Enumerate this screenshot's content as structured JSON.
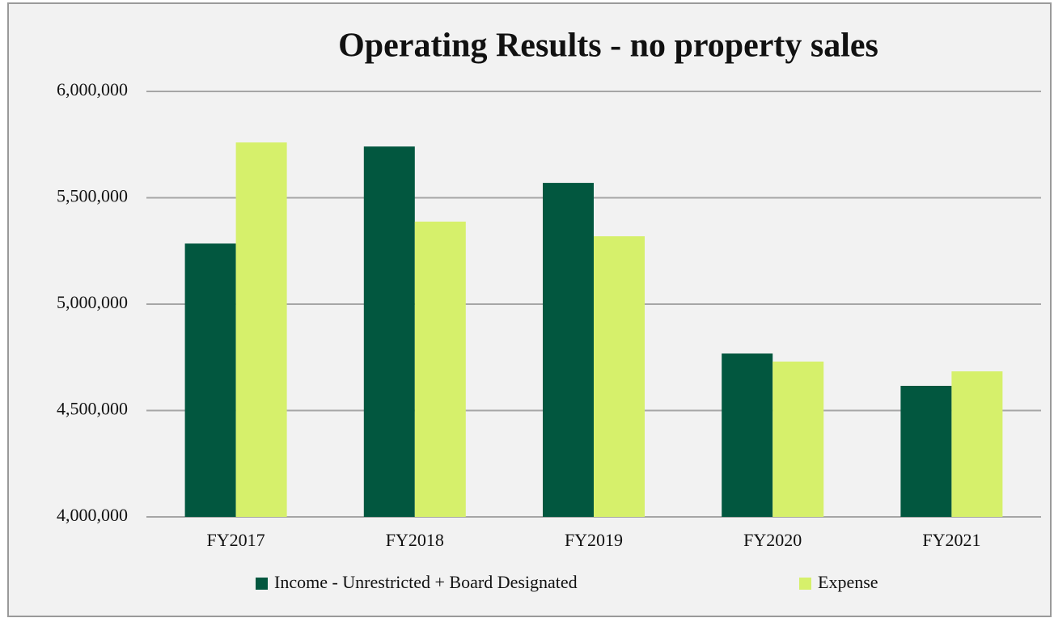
{
  "chart_data": {
    "type": "bar",
    "title": "Operating Results - no property sales",
    "categories": [
      "FY2017",
      "FY2018",
      "FY2019",
      "FY2020",
      "FY2021"
    ],
    "series": [
      {
        "name": "Income - Unrestricted + Board Designated",
        "color": "#02573f",
        "values": [
          5285000,
          5741000,
          5570000,
          4768000,
          4616000
        ]
      },
      {
        "name": "Expense",
        "color": "#d6f06b",
        "values": [
          5760000,
          5388000,
          5319000,
          4730000,
          4684000
        ]
      }
    ],
    "ylim": [
      4000000,
      6000000
    ],
    "yticks": [
      {
        "value": 4000000,
        "label": "4,000,000"
      },
      {
        "value": 4500000,
        "label": "4,500,000"
      },
      {
        "value": 5000000,
        "label": "5,000,000"
      },
      {
        "value": 5500000,
        "label": "5,500,000"
      },
      {
        "value": 6000000,
        "label": "6,000,000"
      }
    ],
    "grid": true
  }
}
